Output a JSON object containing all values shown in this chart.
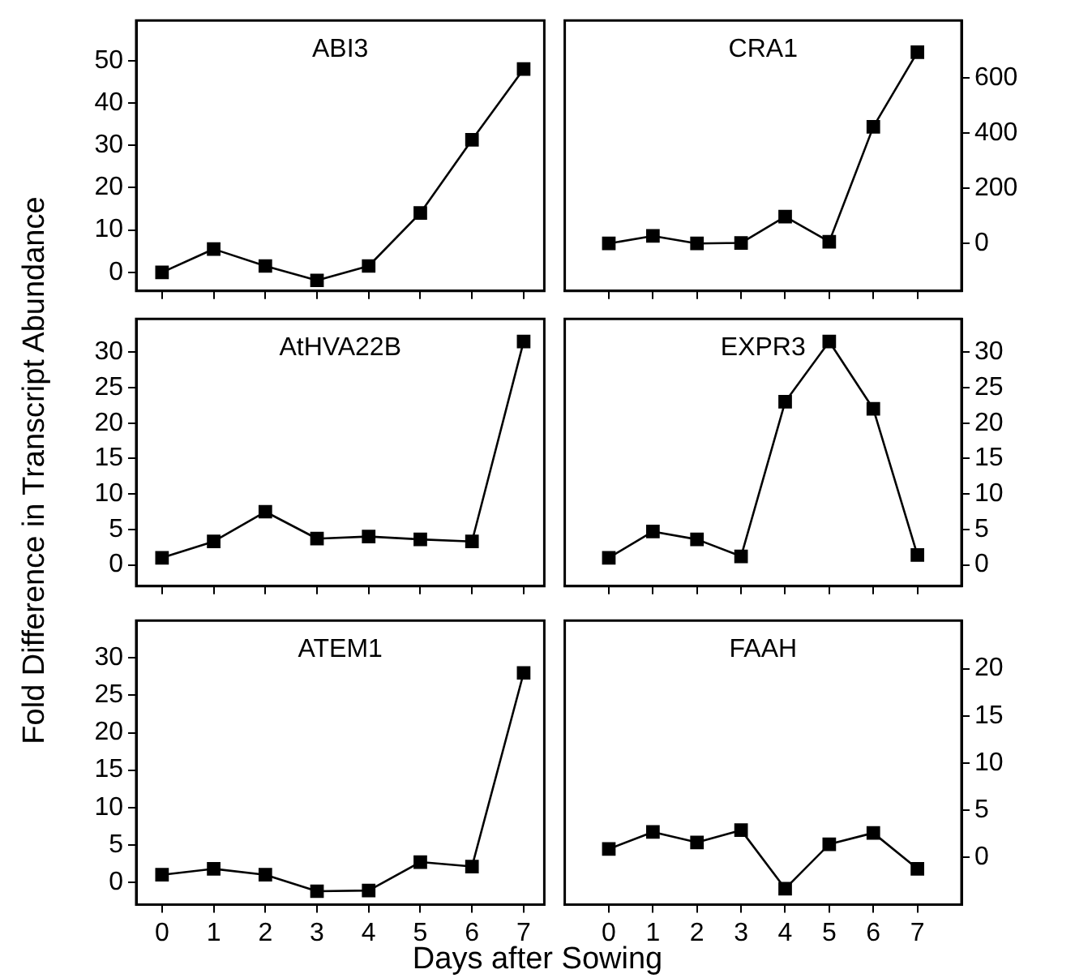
{
  "chart_data": [
    {
      "type": "line",
      "title": "ABI3",
      "ylabel": "Fold Difference in Transcript Abundance",
      "x": [
        0,
        1,
        2,
        3,
        4,
        5,
        6,
        7
      ],
      "series": [
        {
          "color": "#000000",
          "values": [
            0,
            5.5,
            1.5,
            -1.9,
            1.5,
            14,
            31.3,
            48
          ]
        }
      ],
      "xlim": [
        -0.5,
        7.4
      ],
      "xticks": [
        0,
        1,
        2,
        3,
        4,
        5,
        6,
        7
      ],
      "ylim": [
        -4.4,
        59.5
      ],
      "yticks": [
        0,
        10,
        20,
        30,
        40,
        50
      ],
      "tick_labels": "y",
      "marker": "square",
      "line_style": "solid",
      "grid": false,
      "legend": false
    },
    {
      "type": "line",
      "title": "CRA1",
      "x": [
        0,
        1,
        2,
        3,
        4,
        5,
        6,
        7
      ],
      "series": [
        {
          "color": "#000000",
          "axis": "y2",
          "values": [
            0,
            27,
            0,
            2,
            97,
            6,
            422,
            692
          ]
        }
      ],
      "xlim": [
        -1,
        8
      ],
      "xticks": [
        0,
        1,
        2,
        3,
        4,
        5,
        6,
        7
      ],
      "y2lim": [
        -172,
        807
      ],
      "y2ticks": [
        0,
        200,
        400,
        600
      ],
      "tick_labels": "y",
      "marker": "square",
      "line_style": "solid",
      "grid": false,
      "legend": false
    },
    {
      "type": "line",
      "title": "AtHVA22B",
      "x": [
        0,
        1,
        2,
        3,
        4,
        5,
        6,
        7
      ],
      "series": [
        {
          "color": "#000000",
          "values": [
            1,
            3.3,
            7.5,
            3.7,
            4.0,
            3.6,
            3.3,
            31.5
          ]
        }
      ],
      "xlim": [
        -0.5,
        7.4
      ],
      "xticks": [
        0,
        1,
        2,
        3,
        4,
        5,
        6,
        7
      ],
      "ylim": [
        -3,
        34.7
      ],
      "yticks": [
        0,
        5,
        10,
        15,
        20,
        25,
        30
      ],
      "tick_labels": "y",
      "marker": "square",
      "line_style": "solid",
      "grid": false,
      "legend": false
    },
    {
      "type": "line",
      "title": "EXPR3",
      "x": [
        0,
        1,
        2,
        3,
        4,
        5,
        6,
        7
      ],
      "series": [
        {
          "color": "#000000",
          "axis": "y2",
          "values": [
            1,
            4.7,
            3.6,
            1.2,
            23,
            31.5,
            22,
            1.4
          ]
        }
      ],
      "xlim": [
        -1,
        8
      ],
      "xticks": [
        0,
        1,
        2,
        3,
        4,
        5,
        6,
        7
      ],
      "y2lim": [
        -3,
        34.7
      ],
      "y2ticks": [
        0,
        5,
        10,
        15,
        20,
        25,
        30
      ],
      "tick_labels": "y",
      "marker": "square",
      "line_style": "solid",
      "grid": false,
      "legend": false
    },
    {
      "type": "line",
      "title": "ATEM1",
      "xlabel": "Days after Sowing",
      "x": [
        0,
        1,
        2,
        3,
        4,
        5,
        6,
        7
      ],
      "series": [
        {
          "color": "#000000",
          "values": [
            1.0,
            1.8,
            1.0,
            -1.2,
            -1.1,
            2.7,
            2.1,
            28
          ]
        }
      ],
      "xlim": [
        -0.5,
        7.4
      ],
      "xticks": [
        0,
        1,
        2,
        3,
        4,
        5,
        6,
        7
      ],
      "ylim": [
        -3,
        35
      ],
      "yticks": [
        0,
        5,
        10,
        15,
        20,
        25,
        30
      ],
      "marker": "square",
      "line_style": "solid",
      "grid": false,
      "legend": false
    },
    {
      "type": "line",
      "title": "FAAH",
      "x": [
        0,
        1,
        2,
        3,
        4,
        5,
        6,
        7
      ],
      "series": [
        {
          "color": "#000000",
          "axis": "y2",
          "values": [
            0.9,
            2.7,
            1.6,
            2.9,
            -3.3,
            1.4,
            2.6,
            -1.2
          ]
        }
      ],
      "xlim": [
        -1,
        8
      ],
      "xticks": [
        0,
        1,
        2,
        3,
        4,
        5,
        6,
        7
      ],
      "y2lim": [
        -5,
        25.1
      ],
      "y2ticks": [
        0,
        5,
        10,
        15,
        20
      ],
      "marker": "square",
      "line_style": "solid",
      "grid": false,
      "legend": false
    }
  ]
}
